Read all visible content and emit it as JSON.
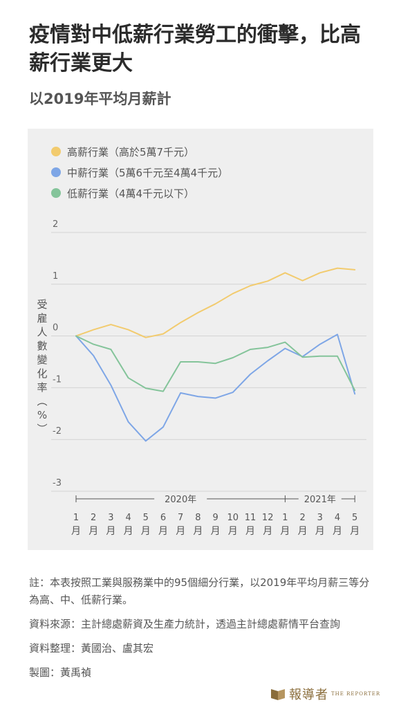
{
  "title": "疫情對中低薪行業勞工的衝擊，比高薪行業更大",
  "subtitle": "以2019年平均月薪計",
  "y_axis_label": "受雇人數變化率（%）",
  "colors": {
    "high": "#f2cb6e",
    "mid": "#7ea6e6",
    "low": "#84c49a"
  },
  "chart_data": {
    "type": "line",
    "categories": [
      "1",
      "2",
      "3",
      "4",
      "5",
      "6",
      "7",
      "8",
      "9",
      "10",
      "11",
      "12",
      "1",
      "2",
      "3",
      "4",
      "5"
    ],
    "month_unit": "月",
    "year_labels": [
      "2020年",
      "2021年"
    ],
    "ylabel": "受雇人數變化率（%）",
    "ylim": [
      -3,
      2
    ],
    "yticks": [
      "2",
      "1",
      "0",
      "-1",
      "-2",
      "-3"
    ],
    "grid": true,
    "series": [
      {
        "name": "高薪行業（高於5萬7千元）",
        "key": "high",
        "values": [
          0,
          0.12,
          0.22,
          0.12,
          -0.03,
          0.04,
          0.26,
          0.45,
          0.62,
          0.82,
          0.97,
          1.06,
          1.22,
          1.07,
          1.22,
          1.31,
          1.28
        ]
      },
      {
        "name": "中薪行業（5萬6千元至4萬4千元）",
        "key": "mid",
        "values": [
          0,
          -0.38,
          -0.95,
          -1.66,
          -2.03,
          -1.76,
          -1.1,
          -1.17,
          -1.2,
          -1.09,
          -0.74,
          -0.48,
          -0.24,
          -0.4,
          -0.16,
          0.03,
          -1.12
        ]
      },
      {
        "name": "低薪行業（4萬4千元以下）",
        "key": "low",
        "values": [
          0,
          -0.16,
          -0.26,
          -0.81,
          -1.01,
          -1.07,
          -0.5,
          -0.5,
          -0.53,
          -0.42,
          -0.26,
          -0.22,
          -0.12,
          -0.41,
          -0.39,
          -0.39,
          -1.05
        ]
      }
    ]
  },
  "notes": [
    "註：本表按照工業與服務業中的95個細分行業，以2019年平均月薪三等分為高、中、低薪行業。",
    "資料來源：主計總處薪資及生產力統計，透過主計總處薪情平台查詢",
    "資料整理：黃國治、盧其宏",
    "製圖：黃禹禎"
  ],
  "logo": {
    "cn": "報導者",
    "en": "THE REPORTER",
    "color": "#8a6d3b"
  }
}
